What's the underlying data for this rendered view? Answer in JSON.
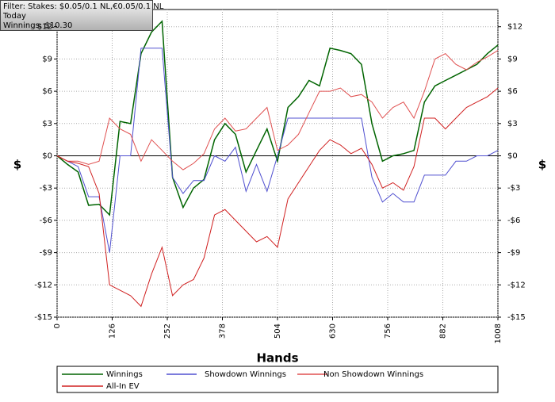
{
  "chart_data": {
    "type": "line",
    "annotations": [
      "Filter: Stakes: $0.05/0.1 NL,€0.05/0.1 NL",
      "Today",
      "Winnings: $10.30"
    ],
    "x_label": "Hands",
    "y_label": "$",
    "y2_label": "$",
    "xlim": [
      0,
      1008
    ],
    "xticks": [
      0,
      126,
      252,
      378,
      504,
      630,
      756,
      882,
      1008
    ],
    "ylim": [
      -15,
      13.6
    ],
    "yticks": [
      {
        "value": -15,
        "label": "-$15"
      },
      {
        "value": -12,
        "label": "-$12"
      },
      {
        "value": -9,
        "label": "-$9"
      },
      {
        "value": -6,
        "label": "-$6"
      },
      {
        "value": -3,
        "label": "-$3"
      },
      {
        "value": 0,
        "label": "$0"
      },
      {
        "value": 3,
        "label": "$3"
      },
      {
        "value": 6,
        "label": "$6"
      },
      {
        "value": 9,
        "label": "$9"
      },
      {
        "value": 12,
        "label": "$12"
      }
    ],
    "y2lim": [
      -15,
      13.6
    ],
    "y2ticks": [
      {
        "value": -15,
        "label": "-$15"
      },
      {
        "value": -12,
        "label": "-$12"
      },
      {
        "value": -9,
        "label": "-$9"
      },
      {
        "value": -6,
        "label": "-$6"
      },
      {
        "value": -3,
        "label": "-$3"
      },
      {
        "value": 0,
        "label": "$0"
      },
      {
        "value": 3,
        "label": "$3"
      },
      {
        "value": 6,
        "label": "$6"
      },
      {
        "value": 9,
        "label": "$9"
      },
      {
        "value": 12,
        "label": "$12"
      }
    ],
    "grid": true,
    "legend": "bottom",
    "x": [
      0,
      24,
      48,
      72,
      96,
      120,
      144,
      168,
      192,
      216,
      240,
      264,
      288,
      312,
      336,
      360,
      384,
      408,
      432,
      456,
      480,
      504,
      528,
      552,
      576,
      600,
      624,
      648,
      672,
      696,
      720,
      744,
      768,
      792,
      816,
      840,
      864,
      888,
      912,
      936,
      960,
      984,
      1008
    ],
    "series": [
      {
        "name": "Winnings",
        "color": "#006400",
        "values": [
          0,
          -0.8,
          -1.5,
          -4.6,
          -4.5,
          -5.5,
          3.2,
          3.0,
          9.5,
          11.5,
          12.5,
          -2,
          -4.8,
          -3,
          -2.2,
          1.5,
          3,
          2,
          -1.5,
          0.5,
          2.5,
          -0.5,
          4.5,
          5.5,
          7,
          6.5,
          10,
          9.8,
          9.5,
          8.5,
          3,
          -0.5,
          0,
          0.2,
          0.5,
          5,
          6.5,
          7,
          7.5,
          8,
          8.5,
          9.5,
          10.3
        ]
      },
      {
        "name": "Showdown Winnings",
        "color": "#5050d0",
        "values": [
          0,
          -0.5,
          -1,
          -3.8,
          -3.8,
          -9,
          0,
          0,
          10,
          10,
          10,
          -2,
          -3.5,
          -2.3,
          -2.3,
          0,
          -0.5,
          0.8,
          -3.3,
          -0.8,
          -3.3,
          0,
          3.5,
          3.5,
          3.5,
          3.5,
          3.5,
          3.5,
          3.5,
          3.5,
          -2,
          -4.3,
          -3.5,
          -4.3,
          -4.3,
          -1.8,
          -1.8,
          -1.8,
          -0.5,
          -0.5,
          0,
          0,
          0.5
        ]
      },
      {
        "name": "Non Showdown Winnings",
        "color": "#e05050",
        "values": [
          0,
          -0.5,
          -0.5,
          -0.8,
          -0.5,
          3.5,
          2.5,
          2,
          -0.5,
          1.5,
          0.5,
          -0.5,
          -1.3,
          -0.7,
          0.2,
          2.5,
          3.5,
          2.3,
          2.5,
          3.5,
          4.5,
          0.5,
          1,
          2,
          4,
          6,
          6,
          6.3,
          5.5,
          5.7,
          5,
          3.5,
          4.5,
          5,
          3.5,
          6,
          9,
          9.5,
          8.5,
          8,
          8.7,
          9.2,
          9.8
        ]
      },
      {
        "name": "All-In EV",
        "color": "#d02020",
        "values": [
          0,
          -0.5,
          -0.7,
          -1,
          -3.5,
          -12,
          -12.5,
          -13,
          -14,
          -11,
          -8.5,
          -13,
          -12,
          -11.5,
          -9.5,
          -5.5,
          -5,
          -6,
          -7,
          -8,
          -7.5,
          -8.5,
          -4,
          -2.5,
          -1,
          0.5,
          1.5,
          1,
          0.2,
          0.7,
          -0.8,
          -3,
          -2.5,
          -3.2,
          -1,
          3.5,
          3.5,
          2.5,
          3.5,
          4.5,
          5,
          5.5,
          6.3
        ]
      }
    ]
  }
}
